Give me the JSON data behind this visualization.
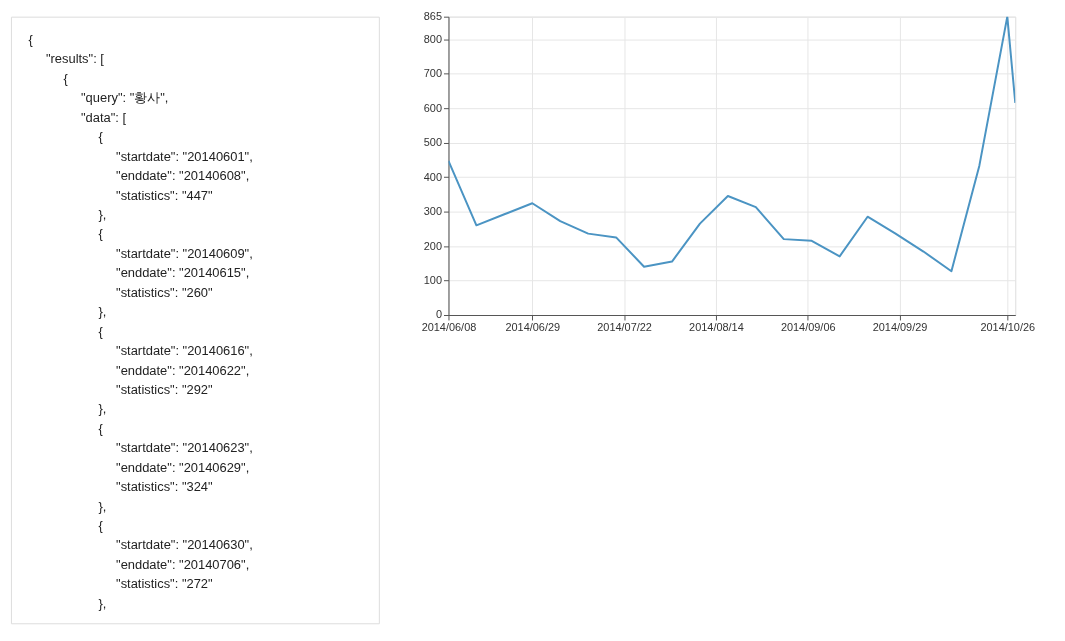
{
  "chart_data": [
    {
      "type": "other",
      "annotations": [
        "{",
        "    \"results\": [",
        "        {",
        "            \"query\": \"황사\",",
        "            \"data\": [",
        "                {",
        "                    \"startdate\": \"20140601\",",
        "                    \"enddate\": \"20140608\",",
        "                    \"statistics\": \"447\"",
        "                },",
        "                {",
        "                    \"startdate\": \"20140609\",",
        "                    \"enddate\": \"20140615\",",
        "                    \"statistics\": \"260\"",
        "                },",
        "                {",
        "                    \"startdate\": \"20140616\",",
        "                    \"enddate\": \"20140622\",",
        "                    \"statistics\": \"292\"",
        "                },",
        "                {",
        "                    \"startdate\": \"20140623\",",
        "                    \"enddate\": \"20140629\",",
        "                    \"statistics\": \"324\"",
        "                },",
        "                {",
        "                    \"startdate\": \"20140630\",",
        "                    \"enddate\": \"20140706\",",
        "                    \"statistics\": \"272\"",
        "                },"
      ]
    },
    {
      "type": "line",
      "x": [
        "2014-06-08",
        "2014-06-15",
        "2014-06-22",
        "2014-06-29",
        "2014-07-06",
        "2014-07-13",
        "2014-07-20",
        "2014-07-27",
        "2014-08-03",
        "2014-08-10",
        "2014-08-17",
        "2014-08-24",
        "2014-08-31",
        "2014-09-07",
        "2014-09-14",
        "2014-09-21",
        "2014-09-28",
        "2014-10-05",
        "2014-10-12",
        "2014-10-19",
        "2014-10-26",
        "2014-10-28"
      ],
      "series": [
        {
          "color": "#4b94c3",
          "values": [
            447,
            260,
            292,
            324,
            272,
            236,
            225,
            140,
            155,
            265,
            345,
            313,
            220,
            215,
            170,
            285,
            236,
            184,
            127,
            433,
            865,
            615
          ]
        }
      ],
      "xlim": [
        "2014-06-08",
        "2014-10-28"
      ],
      "xticks": [
        {
          "value": "2014-06-08",
          "label": "2014/06/08"
        },
        {
          "value": "2014-06-29",
          "label": "2014/06/29"
        },
        {
          "value": "2014-07-22",
          "label": "2014/07/22"
        },
        {
          "value": "2014-08-14",
          "label": "2014/08/14"
        },
        {
          "value": "2014-09-06",
          "label": "2014/09/06"
        },
        {
          "value": "2014-09-29",
          "label": "2014/09/29"
        },
        {
          "value": "2014-10-26",
          "label": "2014/10/26"
        }
      ],
      "ylim": [
        0,
        865
      ],
      "yticks": [
        0,
        100,
        200,
        300,
        400,
        500,
        600,
        700,
        800,
        865
      ],
      "grid": true,
      "marker": "none",
      "line_style": "solid"
    }
  ]
}
